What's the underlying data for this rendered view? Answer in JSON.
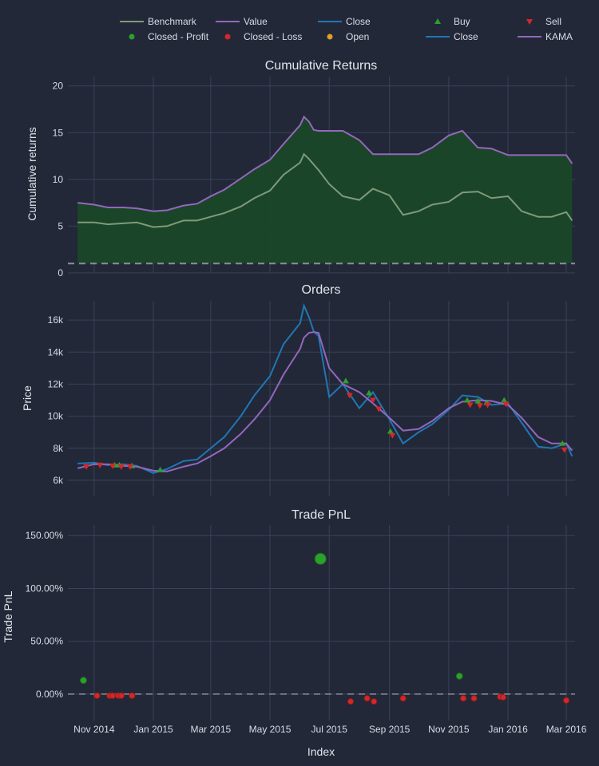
{
  "legend": [
    {
      "label": "Benchmark",
      "kind": "line",
      "color": "#7f9a7a"
    },
    {
      "label": "Value",
      "kind": "line",
      "color": "#9467bd"
    },
    {
      "label": "Close",
      "kind": "line",
      "color": "#1f77b4"
    },
    {
      "label": "Buy",
      "kind": "triangle-up",
      "color": "#2ca02c"
    },
    {
      "label": "Sell",
      "kind": "triangle-down",
      "color": "#d62728"
    },
    {
      "label": "Closed - Profit",
      "kind": "dot",
      "color": "#2ca02c"
    },
    {
      "label": "Closed - Loss",
      "kind": "dot",
      "color": "#d62728"
    },
    {
      "label": "Open",
      "kind": "dot",
      "color": "#e0a020"
    },
    {
      "label": "Close",
      "kind": "line",
      "color": "#1f77b4"
    },
    {
      "label": "KAMA",
      "kind": "line",
      "color": "#9467bd"
    }
  ],
  "colors": {
    "background": "#222838",
    "grid": "#394259",
    "text": "#d8dce6",
    "fill": "#1a4727",
    "baseline": "#8a8f99"
  },
  "chart_data": [
    {
      "type": "line",
      "title": "Cumulative Returns",
      "ylabel": "Cumulative returns",
      "ylim": [
        0,
        21
      ],
      "yticks": [
        0,
        5,
        10,
        15,
        20
      ],
      "baseline": 1,
      "x": [
        "2014-10-15",
        "2014-11-01",
        "2014-11-15",
        "2014-12-01",
        "2014-12-15",
        "2015-01-01",
        "2015-01-15",
        "2015-02-01",
        "2015-02-15",
        "2015-03-01",
        "2015-03-15",
        "2015-04-01",
        "2015-04-15",
        "2015-05-01",
        "2015-05-15",
        "2015-06-01",
        "2015-06-05",
        "2015-06-10",
        "2015-06-15",
        "2015-06-20",
        "2015-07-01",
        "2015-07-15",
        "2015-08-01",
        "2015-08-15",
        "2015-09-01",
        "2015-09-15",
        "2015-10-01",
        "2015-10-15",
        "2015-11-01",
        "2015-11-15",
        "2015-12-01",
        "2015-12-15",
        "2016-01-01",
        "2016-01-15",
        "2016-02-01",
        "2016-02-15",
        "2016-03-01",
        "2016-03-07"
      ],
      "series": [
        {
          "name": "Benchmark",
          "color": "#7f9a7a",
          "values": [
            5.4,
            5.4,
            5.2,
            5.3,
            5.4,
            4.9,
            5.0,
            5.6,
            5.6,
            6.0,
            6.4,
            7.1,
            8.0,
            8.8,
            10.5,
            11.8,
            12.7,
            12.2,
            11.6,
            11.0,
            9.5,
            8.2,
            7.8,
            9.0,
            8.3,
            6.2,
            6.6,
            7.3,
            7.6,
            8.6,
            8.7,
            8.0,
            8.2,
            6.6,
            6.0,
            6.0,
            6.5,
            5.6
          ]
        },
        {
          "name": "Value",
          "color": "#9467bd",
          "values": [
            7.5,
            7.3,
            7.0,
            7.0,
            6.9,
            6.6,
            6.7,
            7.2,
            7.4,
            8.2,
            8.9,
            10.1,
            11.1,
            12.1,
            13.8,
            15.8,
            16.7,
            16.2,
            15.3,
            15.2,
            15.2,
            15.2,
            14.2,
            12.7,
            12.7,
            12.7,
            12.7,
            13.4,
            14.7,
            15.2,
            13.4,
            13.3,
            12.6,
            12.6,
            12.6,
            12.6,
            12.6,
            11.7
          ]
        }
      ]
    },
    {
      "type": "line",
      "title": "Orders",
      "ylabel": "Price",
      "ylim": [
        5000,
        17200
      ],
      "yticks": [
        6000,
        8000,
        10000,
        12000,
        14000,
        16000
      ],
      "ytick_labels": [
        "6k",
        "8k",
        "10k",
        "12k",
        "14k",
        "16k"
      ],
      "x": [
        "2014-10-15",
        "2014-11-01",
        "2014-11-15",
        "2014-12-01",
        "2014-12-15",
        "2015-01-01",
        "2015-01-15",
        "2015-02-01",
        "2015-02-15",
        "2015-03-01",
        "2015-03-15",
        "2015-04-01",
        "2015-04-15",
        "2015-05-01",
        "2015-05-15",
        "2015-06-01",
        "2015-06-05",
        "2015-06-10",
        "2015-06-15",
        "2015-06-20",
        "2015-07-01",
        "2015-07-15",
        "2015-08-01",
        "2015-08-15",
        "2015-09-01",
        "2015-09-15",
        "2015-10-01",
        "2015-10-15",
        "2015-11-01",
        "2015-11-15",
        "2015-12-01",
        "2015-12-15",
        "2016-01-01",
        "2016-01-15",
        "2016-02-01",
        "2016-02-15",
        "2016-03-01",
        "2016-03-07"
      ],
      "series": [
        {
          "name": "Close",
          "color": "#1f77b4",
          "values": [
            7050,
            7100,
            6950,
            7000,
            6900,
            6450,
            6700,
            7200,
            7300,
            8000,
            8700,
            10000,
            11300,
            12500,
            14500,
            15800,
            16900,
            16200,
            15300,
            15000,
            11200,
            12000,
            10500,
            11500,
            9800,
            8300,
            9000,
            9500,
            10400,
            11300,
            11200,
            10700,
            10800,
            9600,
            8100,
            8000,
            8300,
            7500
          ]
        },
        {
          "name": "KAMA",
          "color": "#9467bd",
          "values": [
            6750,
            7000,
            7000,
            6900,
            6850,
            6600,
            6550,
            6850,
            7050,
            7500,
            8000,
            8900,
            9800,
            11000,
            12600,
            14200,
            14900,
            15200,
            15250,
            15200,
            13000,
            12000,
            11500,
            10800,
            9900,
            9100,
            9200,
            9700,
            10500,
            10900,
            11000,
            10950,
            10700,
            9900,
            8700,
            8300,
            8300,
            7850
          ]
        }
      ],
      "buy": [
        {
          "x": "2014-11-22",
          "y": 6950
        },
        {
          "x": "2014-11-27",
          "y": 6950
        },
        {
          "x": "2014-12-10",
          "y": 6900
        },
        {
          "x": "2015-01-08",
          "y": 6650
        },
        {
          "x": "2015-07-18",
          "y": 12200
        },
        {
          "x": "2015-08-11",
          "y": 11450
        },
        {
          "x": "2015-09-02",
          "y": 9050
        },
        {
          "x": "2015-11-20",
          "y": 11000
        },
        {
          "x": "2015-12-01",
          "y": 10950
        },
        {
          "x": "2015-12-10",
          "y": 10850
        },
        {
          "x": "2015-12-28",
          "y": 11000
        },
        {
          "x": "2016-02-26",
          "y": 8300
        }
      ],
      "sell": [
        {
          "x": "2014-10-24",
          "y": 6850
        },
        {
          "x": "2014-11-07",
          "y": 6950
        },
        {
          "x": "2014-11-20",
          "y": 6900
        },
        {
          "x": "2014-11-29",
          "y": 6850
        },
        {
          "x": "2014-12-08",
          "y": 6850
        },
        {
          "x": "2015-07-22",
          "y": 11300
        },
        {
          "x": "2015-08-15",
          "y": 11000
        },
        {
          "x": "2015-08-21",
          "y": 10450
        },
        {
          "x": "2015-09-04",
          "y": 8800
        },
        {
          "x": "2015-11-23",
          "y": 10700
        },
        {
          "x": "2015-12-03",
          "y": 10650
        },
        {
          "x": "2015-12-11",
          "y": 10700
        },
        {
          "x": "2015-12-30",
          "y": 10750
        },
        {
          "x": "2016-02-28",
          "y": 7900
        }
      ]
    },
    {
      "type": "scatter",
      "title": "Trade PnL",
      "ylabel": "Trade PnL",
      "xlabel": "Index",
      "ylim": [
        -25,
        160
      ],
      "yticks": [
        0,
        50,
        100,
        150
      ],
      "ytick_labels": [
        "0.00%",
        "50.00%",
        "100.00%",
        "150.00%"
      ],
      "baseline": 0,
      "xticks": [
        "2014-11-01",
        "2015-01-01",
        "2015-03-01",
        "2015-05-01",
        "2015-07-01",
        "2015-09-01",
        "2015-11-01",
        "2016-01-01",
        "2016-03-01"
      ],
      "xtick_labels": [
        "Nov 2014",
        "Jan 2015",
        "Mar 2015",
        "May 2015",
        "Jul 2015",
        "Sep 2015",
        "Nov 2015",
        "Jan 2016",
        "Mar 2016"
      ],
      "profit": [
        {
          "x": "2014-10-21",
          "y": 13,
          "size": 4
        },
        {
          "x": "2015-06-22",
          "y": 128,
          "size": 7
        },
        {
          "x": "2015-11-12",
          "y": 17,
          "size": 4
        }
      ],
      "loss": [
        {
          "x": "2014-11-04",
          "y": -1.5
        },
        {
          "x": "2014-11-17",
          "y": -1.5
        },
        {
          "x": "2014-11-20",
          "y": -1.5
        },
        {
          "x": "2014-11-26",
          "y": -1.5
        },
        {
          "x": "2014-11-29",
          "y": -1.5
        },
        {
          "x": "2014-12-10",
          "y": -1.5
        },
        {
          "x": "2015-07-23",
          "y": -7
        },
        {
          "x": "2015-08-09",
          "y": -4
        },
        {
          "x": "2015-08-16",
          "y": -7
        },
        {
          "x": "2015-09-15",
          "y": -4
        },
        {
          "x": "2015-11-16",
          "y": -4
        },
        {
          "x": "2015-11-27",
          "y": -4
        },
        {
          "x": "2015-12-24",
          "y": -2.5
        },
        {
          "x": "2015-12-27",
          "y": -3
        },
        {
          "x": "2016-03-01",
          "y": -6
        }
      ]
    }
  ]
}
